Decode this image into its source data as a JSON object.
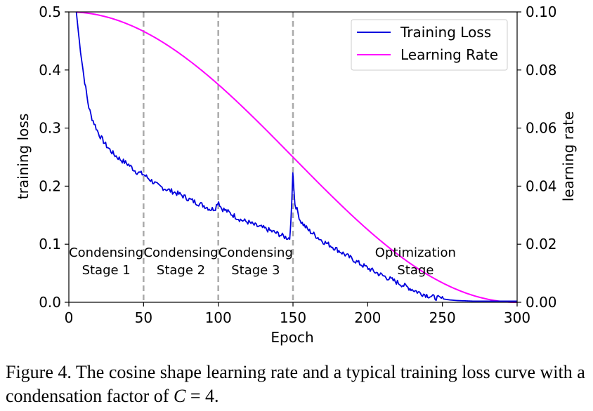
{
  "chart_data": {
    "type": "line",
    "xlabel": "Epoch",
    "ylabel_left": "training loss",
    "ylabel_right": "learning rate",
    "xlim": [
      0,
      300
    ],
    "ylim_left": [
      0,
      0.5
    ],
    "ylim_right": [
      0,
      0.1
    ],
    "x_ticks": [
      "0",
      "50",
      "100",
      "150",
      "200",
      "250",
      "300"
    ],
    "y_left_ticks": [
      "0.0",
      "0.1",
      "0.2",
      "0.3",
      "0.4",
      "0.5"
    ],
    "y_right_ticks": [
      "0.00",
      "0.02",
      "0.04",
      "0.06",
      "0.08",
      "0.10"
    ],
    "grid": false,
    "legend_position": "top-right",
    "series": [
      {
        "name": "Training Loss",
        "axis": "left",
        "color": "#0000dd",
        "x": [
          5,
          7,
          10,
          13,
          15,
          20,
          25,
          30,
          35,
          40,
          45,
          50,
          55,
          60,
          65,
          70,
          75,
          80,
          85,
          90,
          95,
          98,
          100,
          102,
          105,
          110,
          115,
          120,
          125,
          130,
          135,
          140,
          145,
          148,
          149,
          150,
          151,
          152,
          155,
          160,
          165,
          170,
          175,
          180,
          185,
          190,
          195,
          200,
          205,
          210,
          215,
          220,
          225,
          230,
          235,
          240,
          245,
          250,
          255,
          260,
          270,
          280,
          290,
          300
        ],
        "values": [
          0.5,
          0.45,
          0.39,
          0.34,
          0.32,
          0.29,
          0.27,
          0.255,
          0.245,
          0.237,
          0.225,
          0.22,
          0.21,
          0.2,
          0.195,
          0.19,
          0.185,
          0.178,
          0.172,
          0.167,
          0.16,
          0.162,
          0.175,
          0.162,
          0.158,
          0.15,
          0.142,
          0.138,
          0.132,
          0.128,
          0.123,
          0.118,
          0.112,
          0.11,
          0.16,
          0.23,
          0.17,
          0.165,
          0.14,
          0.125,
          0.115,
          0.105,
          0.098,
          0.09,
          0.082,
          0.074,
          0.066,
          0.059,
          0.052,
          0.046,
          0.04,
          0.034,
          0.028,
          0.022,
          0.016,
          0.012,
          0.008,
          0.006,
          0.004,
          0.003,
          0.002,
          0.002,
          0.002,
          0.002
        ]
      },
      {
        "name": "Learning Rate",
        "axis": "right",
        "color": "#ff00ff",
        "formula": "0.05 * (1 + cos(pi * epoch / 300)), starting at epoch 5",
        "x_start": 5,
        "x_end": 300,
        "peak": 0.1
      }
    ],
    "vertical_lines": [
      50,
      100,
      150
    ],
    "annotations": [
      {
        "lines": [
          "Condensing",
          "Stage 1"
        ],
        "x": 25
      },
      {
        "lines": [
          "Condensing",
          "Stage 2"
        ],
        "x": 75
      },
      {
        "lines": [
          "Condensing",
          "Stage 3"
        ],
        "x": 125
      },
      {
        "lines": [
          "Optimization",
          "Stage"
        ],
        "x": 232
      }
    ]
  },
  "caption": {
    "prefix": "Figure 4. The cosine shape learning rate and a typical training loss curve with a condensation factor of ",
    "math_var": "C",
    "math_rest": " = 4."
  }
}
